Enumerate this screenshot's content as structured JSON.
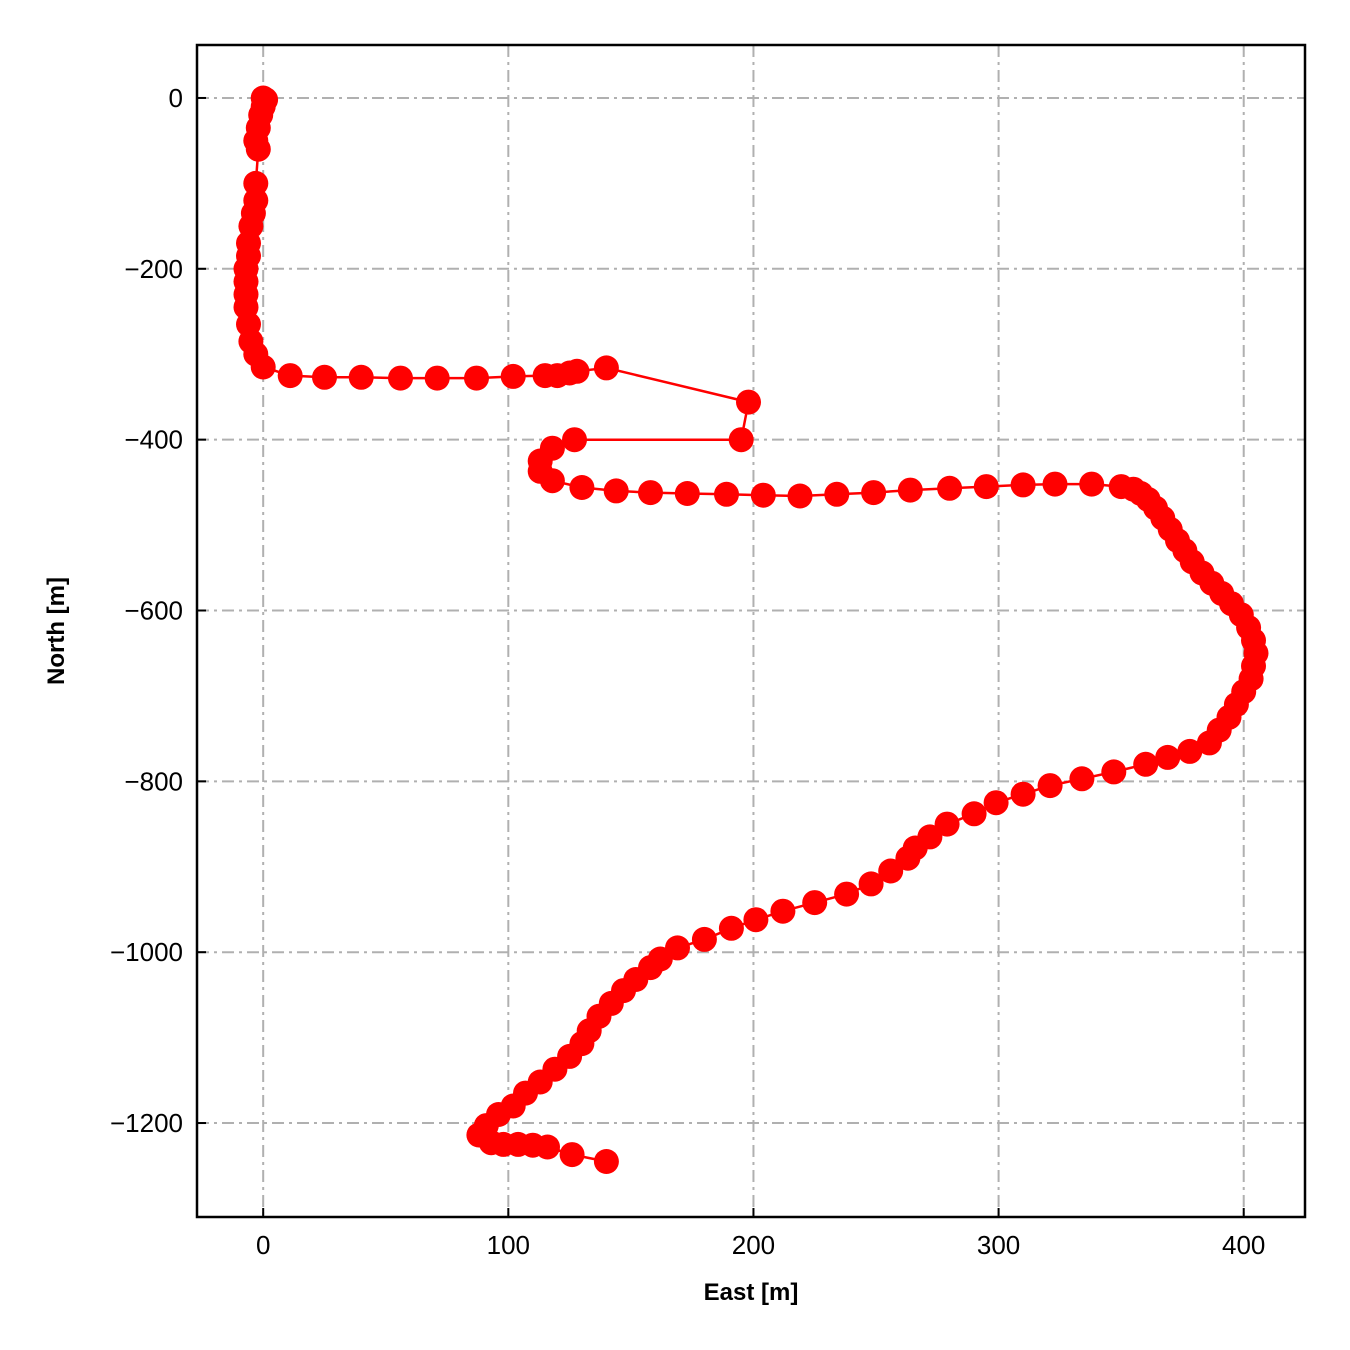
{
  "chart_data": {
    "type": "scatter",
    "title": "",
    "xlabel": "East [m]",
    "ylabel": "North [m]",
    "xlim": [
      -27,
      425
    ],
    "ylim": [
      -1310,
      62
    ],
    "xticks": [
      0,
      100,
      200,
      300,
      400
    ],
    "yticks": [
      0,
      -200,
      -400,
      -600,
      -800,
      -1000,
      -1200
    ],
    "xtick_labels": [
      "0",
      "100",
      "200",
      "300",
      "400"
    ],
    "ytick_labels": [
      "0",
      "−200",
      "−400",
      "−600",
      "−800",
      "−1000",
      "−1200"
    ],
    "grid": true,
    "color": "#ff0000",
    "series": [
      {
        "marker": "circle",
        "line": true,
        "x": [
          0,
          1,
          0,
          -1,
          -2,
          -3,
          -2,
          -3,
          -3,
          -4,
          -5,
          -6,
          -6,
          -7,
          -7,
          -7,
          -7,
          -6,
          -5,
          -3,
          0,
          11,
          25,
          40,
          56,
          71,
          87,
          102,
          115,
          120,
          125,
          128,
          140,
          198,
          195,
          127,
          118,
          113,
          113,
          118,
          130,
          144,
          158,
          173,
          189,
          204,
          219,
          234,
          249,
          264,
          280,
          295,
          310,
          323,
          338,
          350,
          355,
          358,
          361,
          364,
          367,
          370,
          373,
          376,
          379,
          383,
          387,
          391,
          395,
          399,
          402,
          404,
          405,
          404,
          403,
          400,
          397,
          394,
          390,
          386,
          378,
          369,
          360,
          347,
          334,
          321,
          310,
          299,
          290,
          279,
          272,
          266,
          263,
          256,
          248,
          238,
          225,
          212,
          201,
          191,
          180,
          169,
          162,
          158,
          152,
          147,
          142,
          137,
          133,
          130,
          125,
          119,
          113,
          107,
          102,
          96,
          91,
          88,
          93,
          98,
          104,
          110,
          116,
          126,
          140
        ],
        "y": [
          0,
          -2,
          -10,
          -20,
          -35,
          -50,
          -60,
          -100,
          -120,
          -135,
          -150,
          -170,
          -185,
          -200,
          -215,
          -230,
          -245,
          -265,
          -285,
          -300,
          -315,
          -325,
          -327,
          -327,
          -328,
          -328,
          -328,
          -326,
          -325,
          -325,
          -322,
          -320,
          -316,
          -356,
          -400,
          -400,
          -410,
          -425,
          -437,
          -448,
          -456,
          -460,
          -462,
          -463,
          -464,
          -465,
          -466,
          -464,
          -462,
          -459,
          -457,
          -455,
          -453,
          -452,
          -452,
          -455,
          -458,
          -463,
          -470,
          -480,
          -492,
          -505,
          -518,
          -530,
          -543,
          -556,
          -568,
          -580,
          -592,
          -605,
          -620,
          -635,
          -650,
          -665,
          -680,
          -695,
          -710,
          -725,
          -740,
          -755,
          -765,
          -772,
          -780,
          -789,
          -797,
          -805,
          -815,
          -825,
          -838,
          -850,
          -865,
          -878,
          -890,
          -905,
          -920,
          -932,
          -942,
          -952,
          -962,
          -972,
          -985,
          -995,
          -1008,
          -1018,
          -1032,
          -1045,
          -1060,
          -1075,
          -1092,
          -1107,
          -1122,
          -1137,
          -1152,
          -1165,
          -1180,
          -1190,
          -1203,
          -1214,
          -1223,
          -1225,
          -1225,
          -1226,
          -1228,
          -1237,
          -1245
        ]
      }
    ]
  }
}
